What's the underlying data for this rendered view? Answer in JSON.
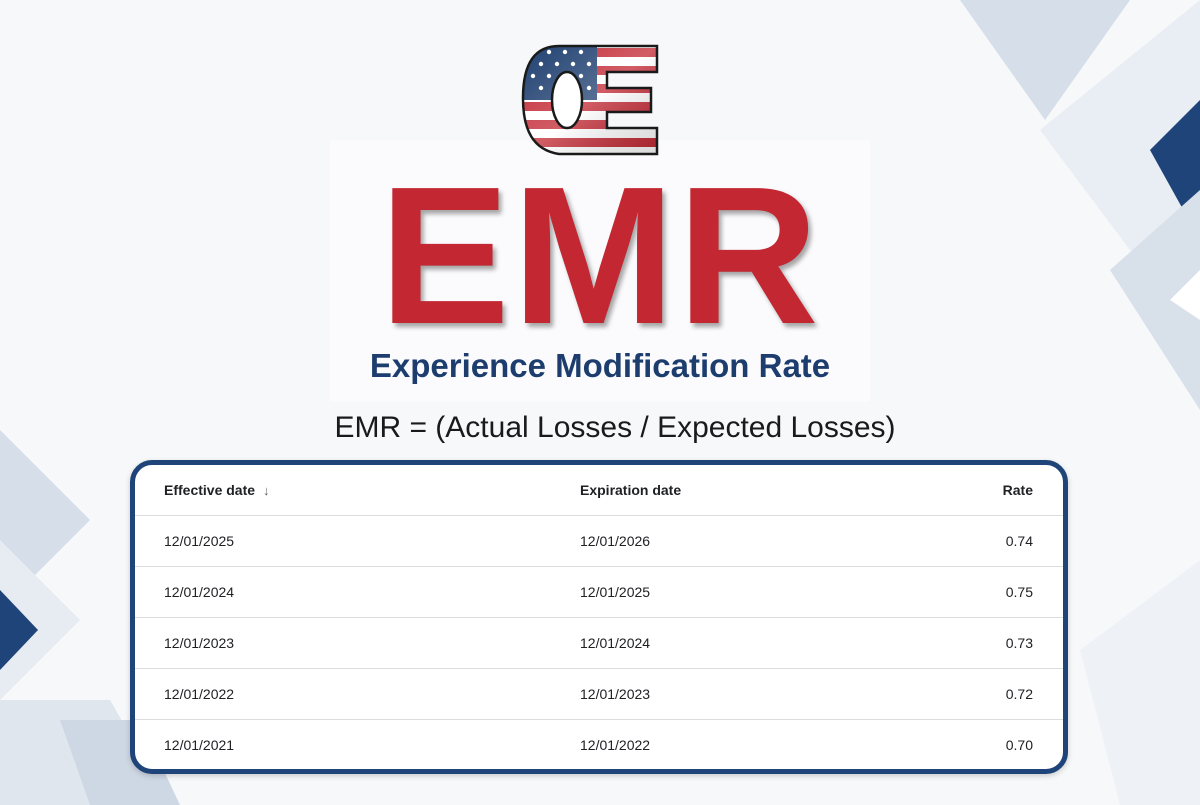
{
  "header": {
    "logo_name": "OE flag logo",
    "title": "EMR",
    "subtitle": "Experience Modification Rate",
    "formula": "EMR = (Actual Losses / Expected Losses)"
  },
  "table": {
    "columns": {
      "effective": "Effective date",
      "expiration": "Expiration date",
      "rate": "Rate",
      "sort_indicator": "↓"
    },
    "rows": [
      {
        "effective": "12/01/2025",
        "expiration": "12/01/2026",
        "rate": "0.74"
      },
      {
        "effective": "12/01/2024",
        "expiration": "12/01/2025",
        "rate": "0.75"
      },
      {
        "effective": "12/01/2023",
        "expiration": "12/01/2024",
        "rate": "0.73"
      },
      {
        "effective": "12/01/2022",
        "expiration": "12/01/2023",
        "rate": "0.72"
      },
      {
        "effective": "12/01/2021",
        "expiration": "12/01/2022",
        "rate": "0.70"
      }
    ]
  },
  "colors": {
    "title_red": "#c22732",
    "navy": "#1c3d6e",
    "card_border": "#1f4479",
    "shape_light": "#dfe6ef",
    "shape_dark": "#1f4479"
  }
}
